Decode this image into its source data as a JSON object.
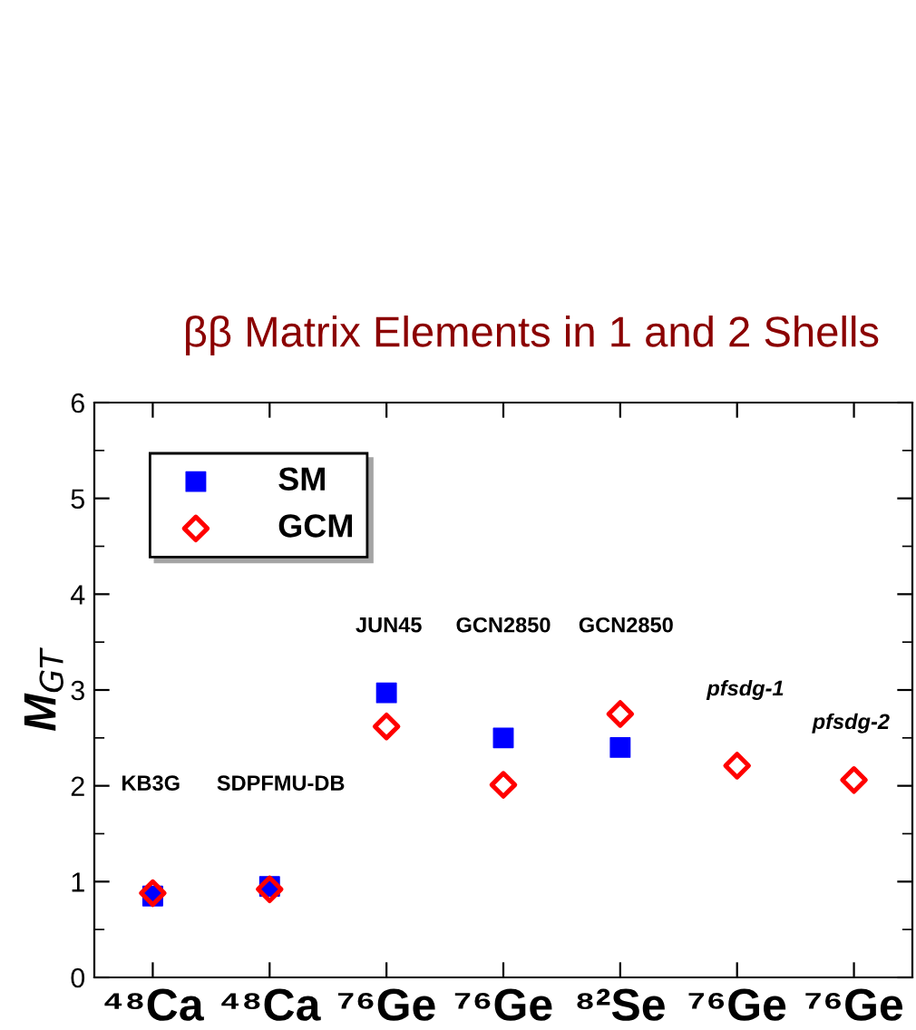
{
  "chart_data": {
    "type": "scatter",
    "title": "ββ Matrix Elements in 1 and 2 Shells",
    "ylabel": "M$_{GT}$",
    "categories": [
      "⁴⁸Ca",
      "⁴⁸Ca",
      "⁷⁶Ge",
      "⁷⁶Ge",
      "⁸²Se",
      "⁷⁶Ge",
      "⁷⁶Ge"
    ],
    "series": [
      {
        "name": "SM",
        "color": "#0000ff",
        "marker": "square",
        "values": [
          0.85,
          0.95,
          2.97,
          2.5,
          2.4,
          null,
          null
        ]
      },
      {
        "name": "GCM",
        "color": "#ff0000",
        "marker": "diamond",
        "values": [
          0.88,
          0.92,
          2.62,
          2.01,
          2.75,
          2.21,
          2.06
        ]
      }
    ],
    "annotations": [
      "KB3G",
      "SDPFMU-DB",
      "JUN45",
      "GCN2850",
      "GCN2850",
      "pfsdg-1",
      "pfsdg-2"
    ],
    "ylim": [
      0,
      6
    ],
    "yticks": [
      0,
      1,
      2,
      3,
      4,
      5,
      6
    ],
    "grid": false,
    "legend": "top left"
  }
}
